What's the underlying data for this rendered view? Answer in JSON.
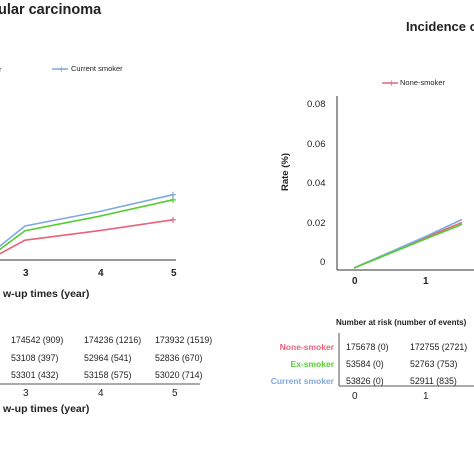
{
  "left_panel": {
    "title": "ular carcinoma",
    "legend_partial_text": "r",
    "legend_current": "Current smoker",
    "x_ticks": [
      "3",
      "4",
      "5"
    ],
    "xlabel": "w-up times (year)",
    "risk_rows": [
      [
        "174542 (909)",
        "174236 (1216)",
        "173932 (1519)"
      ],
      [
        "53108 (397)",
        "52964 (541)",
        "52836 (670)"
      ],
      [
        "53301 (432)",
        "53158 (575)",
        "53020 (714)"
      ]
    ],
    "risk_x_ticks": [
      "3",
      "4",
      "5"
    ],
    "risk_xlabel": "w-up times (year)"
  },
  "right_panel": {
    "title": "Incidence o",
    "legend_none": "None-smoker",
    "ylabel": "Rate (%)",
    "y_ticks": [
      "0.08",
      "0.06",
      "0.04",
      "0.02",
      "0"
    ],
    "x_ticks": [
      "0",
      "1"
    ],
    "risk_header": "Number at risk (number of events)",
    "risk_groups": [
      "None-smoker",
      "Ex-smoker",
      "Current smoker"
    ],
    "risk_rows": [
      [
        "175678 (0)",
        "172755 (2721)"
      ],
      [
        "53584 (0)",
        "52763 (753)"
      ],
      [
        "53826 (0)",
        "52911 (835)"
      ]
    ],
    "risk_x_ticks": [
      "0",
      "1"
    ]
  },
  "colors": {
    "none_smoker": "#e8637a",
    "ex_smoker": "#55cc33",
    "current_smoker": "#7fa8dd",
    "axis": "#333333",
    "table_line": "#555555"
  },
  "chart_data": [
    {
      "type": "line",
      "title": "ular carcinoma",
      "xlabel": "w-up times (year)",
      "x": [
        2,
        3,
        4,
        5
      ],
      "series": [
        {
          "name": "Current smoker",
          "values": [
            0.006,
            0.0165,
            0.0235,
            0.0317
          ]
        },
        {
          "values": [
            0.0045,
            0.0142,
            0.0212,
            0.0292
          ]
        },
        {
          "values": [
            0.0025,
            0.0096,
            0.0142,
            0.0195
          ]
        }
      ]
    },
    {
      "type": "line",
      "title": "Incidence o",
      "ylabel": "Rate (%)",
      "ylim": [
        0,
        0.08
      ],
      "x": [
        0,
        1,
        1.5
      ],
      "series": [
        {
          "name": "None-smoker",
          "values": [
            0,
            0.0155,
            0.023
          ]
        },
        {
          "values": [
            0,
            0.016,
            0.0245
          ]
        },
        {
          "values": [
            0,
            0.0148,
            0.022
          ]
        }
      ]
    }
  ]
}
